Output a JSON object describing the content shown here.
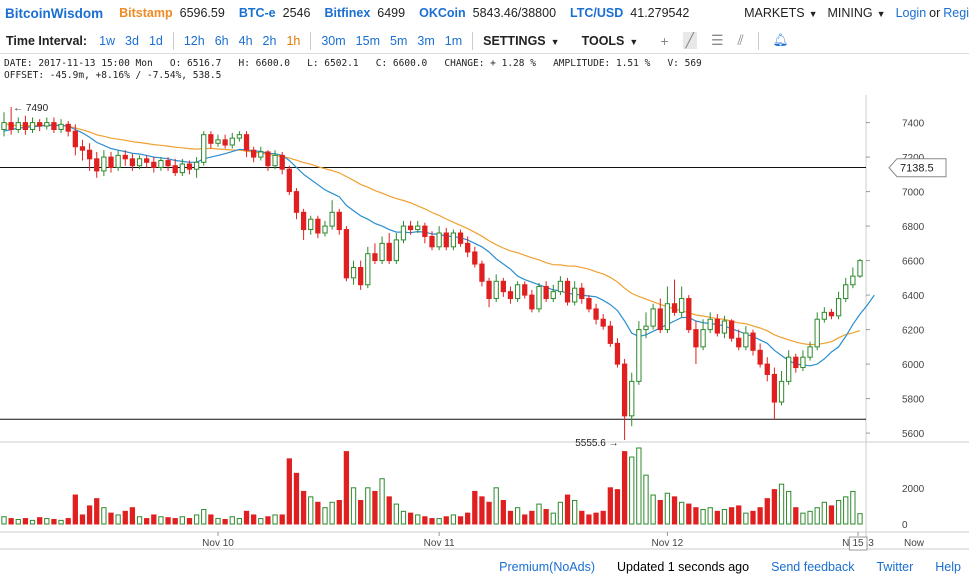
{
  "brand": "BitcoinWisdom",
  "exchanges": [
    {
      "name": "Bitstamp",
      "price": "6596.59",
      "color": "#f08a24"
    },
    {
      "name": "BTC-e",
      "price": "2546",
      "color": "#1a6fd1"
    },
    {
      "name": "Bitfinex",
      "price": "6499",
      "color": "#1a6fd1"
    },
    {
      "name": "OKCoin",
      "price": "5843.46/38800",
      "color": "#1a6fd1"
    },
    {
      "name": "LTC/USD",
      "price": "41.279542",
      "color": "#1a6fd1"
    }
  ],
  "menus": {
    "markets": "MARKETS",
    "mining": "MINING",
    "login": "Login",
    "or": "or",
    "register": "Regi"
  },
  "toolbar": {
    "label": "Time Interval:",
    "intervals": [
      "1w",
      "3d",
      "1d",
      "12h",
      "6h",
      "4h",
      "2h",
      "1h",
      "30m",
      "15m",
      "5m",
      "3m",
      "1m"
    ],
    "selected_index": 7,
    "settings": "SETTINGS",
    "tools": "TOOLS"
  },
  "info": {
    "line1": "DATE: 2017-11-13 15:00 Mon   O: 6516.7   H: 6600.0   L: 6502.1   C: 6600.0   CHANGE: + 1.28 %   AMPLITUDE: 1.51 %   V: 569",
    "line2": "OFFSET: -45.9m, +8.16% / -7.54%, 538.5"
  },
  "chart_data": {
    "type": "candlestick",
    "price_ticks": [
      "7400",
      "7200",
      "7000",
      "6800",
      "6600",
      "6400",
      "6200",
      "6000",
      "5800",
      "5600"
    ],
    "volume_ticks": [
      "2000",
      "0"
    ],
    "x_ticks": [
      "Nov 10",
      "Nov 11",
      "Nov 12",
      "Nov 13",
      "15",
      "Now"
    ],
    "current_price": "7138.5",
    "high_annotation": "← 7490",
    "low_annotation": "5555.6 →",
    "ylim": [
      5560,
      7560
    ],
    "hlines": [
      7140,
      5680
    ],
    "candles": [
      [
        7360,
        7400,
        7460,
        7320,
        400
      ],
      [
        7400,
        7360,
        7490,
        7330,
        300
      ],
      [
        7360,
        7400,
        7430,
        7340,
        250
      ],
      [
        7400,
        7360,
        7440,
        7330,
        300
      ],
      [
        7360,
        7400,
        7430,
        7340,
        200
      ],
      [
        7400,
        7380,
        7420,
        7350,
        350
      ],
      [
        7380,
        7400,
        7430,
        7360,
        300
      ],
      [
        7400,
        7360,
        7430,
        7340,
        250
      ],
      [
        7360,
        7390,
        7420,
        7340,
        200
      ],
      [
        7390,
        7350,
        7410,
        7320,
        300
      ],
      [
        7350,
        7260,
        7390,
        7210,
        1600
      ],
      [
        7260,
        7240,
        7300,
        7180,
        500
      ],
      [
        7240,
        7190,
        7280,
        7120,
        1000
      ],
      [
        7190,
        7120,
        7230,
        7080,
        1400
      ],
      [
        7120,
        7200,
        7240,
        7090,
        900
      ],
      [
        7200,
        7140,
        7230,
        7110,
        600
      ],
      [
        7140,
        7210,
        7240,
        7120,
        500
      ],
      [
        7210,
        7190,
        7240,
        7150,
        700
      ],
      [
        7190,
        7150,
        7220,
        7120,
        900
      ],
      [
        7150,
        7190,
        7210,
        7130,
        400
      ],
      [
        7190,
        7170,
        7210,
        7140,
        300
      ],
      [
        7170,
        7140,
        7200,
        7110,
        500
      ],
      [
        7140,
        7180,
        7200,
        7120,
        400
      ],
      [
        7180,
        7150,
        7200,
        7120,
        350
      ],
      [
        7150,
        7110,
        7190,
        7090,
        300
      ],
      [
        7110,
        7160,
        7190,
        7090,
        400
      ],
      [
        7160,
        7130,
        7180,
        7100,
        300
      ],
      [
        7130,
        7170,
        7200,
        7080,
        500
      ],
      [
        7170,
        7330,
        7350,
        7150,
        800
      ],
      [
        7330,
        7280,
        7350,
        7250,
        500
      ],
      [
        7280,
        7300,
        7330,
        7260,
        300
      ],
      [
        7300,
        7270,
        7330,
        7250,
        250
      ],
      [
        7270,
        7310,
        7340,
        7250,
        400
      ],
      [
        7310,
        7330,
        7350,
        7290,
        300
      ],
      [
        7330,
        7240,
        7350,
        7200,
        700
      ],
      [
        7240,
        7200,
        7260,
        7170,
        500
      ],
      [
        7200,
        7230,
        7260,
        7180,
        300
      ],
      [
        7230,
        7150,
        7240,
        7120,
        400
      ],
      [
        7150,
        7210,
        7240,
        7130,
        500
      ],
      [
        7210,
        7130,
        7230,
        7100,
        500
      ],
      [
        7130,
        7000,
        7150,
        6980,
        3600
      ],
      [
        7000,
        6880,
        7020,
        6840,
        2800
      ],
      [
        6880,
        6780,
        6900,
        6720,
        1800
      ],
      [
        6780,
        6840,
        6860,
        6750,
        1500
      ],
      [
        6840,
        6760,
        6860,
        6730,
        1200
      ],
      [
        6760,
        6800,
        6830,
        6740,
        900
      ],
      [
        6800,
        6880,
        6950,
        6780,
        1200
      ],
      [
        6880,
        6780,
        6900,
        6750,
        1300
      ],
      [
        6780,
        6500,
        6800,
        6480,
        4000
      ],
      [
        6500,
        6560,
        6600,
        6460,
        2000
      ],
      [
        6560,
        6460,
        6600,
        6430,
        1300
      ],
      [
        6460,
        6640,
        6680,
        6440,
        2000
      ],
      [
        6640,
        6600,
        6700,
        6580,
        1800
      ],
      [
        6600,
        6700,
        6740,
        6580,
        2500
      ],
      [
        6700,
        6600,
        6760,
        6580,
        1500
      ],
      [
        6600,
        6720,
        6760,
        6580,
        1100
      ],
      [
        6720,
        6800,
        6830,
        6700,
        700
      ],
      [
        6800,
        6780,
        6830,
        6750,
        600
      ],
      [
        6780,
        6800,
        6830,
        6760,
        500
      ],
      [
        6800,
        6740,
        6820,
        6700,
        400
      ],
      [
        6740,
        6680,
        6770,
        6660,
        300
      ],
      [
        6680,
        6760,
        6800,
        6660,
        300
      ],
      [
        6760,
        6680,
        6790,
        6660,
        400
      ],
      [
        6680,
        6760,
        6780,
        6660,
        500
      ],
      [
        6760,
        6700,
        6780,
        6680,
        400
      ],
      [
        6700,
        6650,
        6740,
        6620,
        600
      ],
      [
        6650,
        6580,
        6680,
        6560,
        1800
      ],
      [
        6580,
        6480,
        6600,
        6450,
        1500
      ],
      [
        6480,
        6380,
        6500,
        6330,
        1200
      ],
      [
        6380,
        6480,
        6520,
        6360,
        2000
      ],
      [
        6480,
        6420,
        6500,
        6390,
        1300
      ],
      [
        6420,
        6380,
        6450,
        6350,
        700
      ],
      [
        6380,
        6460,
        6480,
        6360,
        900
      ],
      [
        6460,
        6400,
        6480,
        6380,
        500
      ],
      [
        6400,
        6320,
        6430,
        6300,
        700
      ],
      [
        6320,
        6450,
        6470,
        6300,
        1100
      ],
      [
        6450,
        6380,
        6480,
        6360,
        800
      ],
      [
        6380,
        6420,
        6460,
        6360,
        600
      ],
      [
        6420,
        6480,
        6510,
        6400,
        1200
      ],
      [
        6480,
        6360,
        6500,
        6340,
        1600
      ],
      [
        6360,
        6440,
        6480,
        6340,
        1300
      ],
      [
        6440,
        6380,
        6470,
        6350,
        700
      ],
      [
        6380,
        6320,
        6400,
        6300,
        500
      ],
      [
        6320,
        6260,
        6350,
        6230,
        600
      ],
      [
        6260,
        6220,
        6290,
        6200,
        700
      ],
      [
        6220,
        6120,
        6250,
        6100,
        2000
      ],
      [
        6120,
        6000,
        6150,
        5980,
        1900
      ],
      [
        6000,
        5700,
        6030,
        5560,
        4000
      ],
      [
        5700,
        5900,
        5950,
        5640,
        3700
      ],
      [
        5900,
        6200,
        6250,
        5880,
        4200
      ],
      [
        6200,
        6220,
        6300,
        6150,
        2700
      ],
      [
        6220,
        6320,
        6350,
        6200,
        1600
      ],
      [
        6320,
        6200,
        6380,
        6180,
        1300
      ],
      [
        6200,
        6350,
        6450,
        6180,
        1700
      ],
      [
        6350,
        6300,
        6490,
        6280,
        1500
      ],
      [
        6300,
        6380,
        6450,
        6270,
        1200
      ],
      [
        6380,
        6200,
        6400,
        6180,
        1100
      ],
      [
        6200,
        6100,
        6250,
        6000,
        900
      ],
      [
        6100,
        6200,
        6260,
        6080,
        800
      ],
      [
        6200,
        6260,
        6300,
        6180,
        900
      ],
      [
        6260,
        6180,
        6290,
        6160,
        700
      ],
      [
        6180,
        6250,
        6280,
        6150,
        800
      ],
      [
        6250,
        6150,
        6260,
        6130,
        900
      ],
      [
        6150,
        6100,
        6200,
        6080,
        1000
      ],
      [
        6100,
        6180,
        6220,
        6080,
        600
      ],
      [
        6180,
        6080,
        6200,
        6050,
        700
      ],
      [
        6080,
        6000,
        6120,
        5980,
        900
      ],
      [
        6000,
        5940,
        6040,
        5900,
        1400
      ],
      [
        5940,
        5780,
        5980,
        5680,
        1900
      ],
      [
        5780,
        5900,
        5960,
        5760,
        2200
      ],
      [
        5900,
        6040,
        6080,
        5880,
        1800
      ],
      [
        6040,
        5980,
        6060,
        5950,
        900
      ],
      [
        5980,
        6040,
        6080,
        5960,
        600
      ],
      [
        6040,
        6100,
        6130,
        6020,
        700
      ],
      [
        6100,
        6260,
        6300,
        6080,
        900
      ],
      [
        6260,
        6300,
        6330,
        6240,
        1200
      ],
      [
        6300,
        6280,
        6320,
        6260,
        1000
      ],
      [
        6280,
        6380,
        6420,
        6260,
        1300
      ],
      [
        6380,
        6460,
        6500,
        6360,
        1500
      ],
      [
        6460,
        6510,
        6560,
        6440,
        1800
      ],
      [
        6510,
        6600,
        6610,
        6500,
        570
      ]
    ],
    "ma_fast": [
      7350,
      7360,
      7368,
      7372,
      7376,
      7380,
      7384,
      7386,
      7383,
      7379,
      7360,
      7340,
      7315,
      7285,
      7268,
      7250,
      7240,
      7232,
      7222,
      7218,
      7210,
      7200,
      7196,
      7190,
      7180,
      7175,
      7170,
      7170,
      7190,
      7200,
      7210,
      7220,
      7232,
      7245,
      7242,
      7236,
      7233,
      7222,
      7220,
      7210,
      7180,
      7140,
      7100,
      7070,
      7040,
      7010,
      6990,
      6970,
      6920,
      6890,
      6860,
      6840,
      6815,
      6800,
      6780,
      6765,
      6765,
      6762,
      6768,
      6765,
      6755,
      6752,
      6742,
      6740,
      6732,
      6720,
      6700,
      6680,
      6650,
      6610,
      6580,
      6550,
      6510,
      6490,
      6475,
      6460,
      6445,
      6430,
      6425,
      6410,
      6405,
      6400,
      6395,
      6390,
      6370,
      6345,
      6310,
      6250,
      6180,
      6160,
      6170,
      6190,
      6210,
      6230,
      6250,
      6270,
      6270,
      6250,
      6240,
      6235,
      6230,
      6220,
      6205,
      6190,
      6175,
      6160,
      6140,
      6120,
      6080,
      6050,
      6020,
      6000,
      5995,
      5990,
      6000,
      6030,
      6070,
      6100,
      6160,
      6230,
      6290,
      6340,
      6400
    ]
  },
  "footer": {
    "premium": "Premium(NoAds)",
    "updated": "Updated 1 seconds ago",
    "feedback": "Send feedback",
    "twitter": "Twitter",
    "help": "Help"
  }
}
